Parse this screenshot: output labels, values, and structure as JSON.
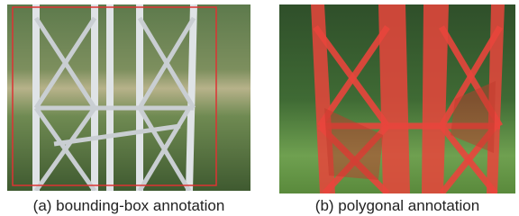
{
  "panels": [
    {
      "caption": "(a) bounding-box annotation"
    },
    {
      "caption": "(b) polygonal annotation"
    }
  ]
}
